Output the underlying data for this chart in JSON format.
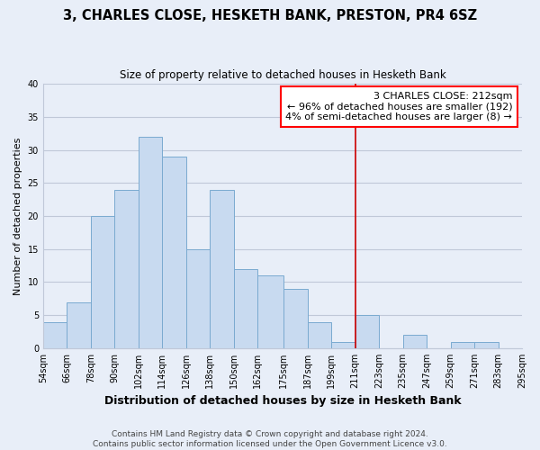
{
  "title": "3, CHARLES CLOSE, HESKETH BANK, PRESTON, PR4 6SZ",
  "subtitle": "Size of property relative to detached houses in Hesketh Bank",
  "xlabel": "Distribution of detached houses by size in Hesketh Bank",
  "ylabel": "Number of detached properties",
  "bin_edges": [
    54,
    66,
    78,
    90,
    102,
    114,
    126,
    138,
    150,
    162,
    175,
    187,
    199,
    211,
    223,
    235,
    247,
    259,
    271,
    283,
    295
  ],
  "bin_labels": [
    "54sqm",
    "66sqm",
    "78sqm",
    "90sqm",
    "102sqm",
    "114sqm",
    "126sqm",
    "138sqm",
    "150sqm",
    "162sqm",
    "175sqm",
    "187sqm",
    "199sqm",
    "211sqm",
    "223sqm",
    "235sqm",
    "247sqm",
    "259sqm",
    "271sqm",
    "283sqm",
    "295sqm"
  ],
  "counts": [
    4,
    7,
    20,
    24,
    32,
    29,
    15,
    24,
    12,
    11,
    9,
    4,
    1,
    5,
    0,
    2,
    0,
    1,
    1,
    0
  ],
  "bar_color": "#c8daf0",
  "bar_edge_color": "#7aaad0",
  "vline_x": 211,
  "vline_color": "#cc0000",
  "annotation_title": "3 CHARLES CLOSE: 212sqm",
  "annotation_line1": "← 96% of detached houses are smaller (192)",
  "annotation_line2": "4% of semi-detached houses are larger (8) →",
  "ylim": [
    0,
    40
  ],
  "yticks": [
    0,
    5,
    10,
    15,
    20,
    25,
    30,
    35,
    40
  ],
  "footer1": "Contains HM Land Registry data © Crown copyright and database right 2024.",
  "footer2": "Contains public sector information licensed under the Open Government Licence v3.0.",
  "bg_color": "#e8eef8",
  "grid_color": "#c0c8d8",
  "title_fontsize": 10.5,
  "subtitle_fontsize": 8.5,
  "xlabel_fontsize": 9,
  "ylabel_fontsize": 8,
  "tick_fontsize": 7,
  "footer_fontsize": 6.5,
  "annot_fontsize": 8
}
